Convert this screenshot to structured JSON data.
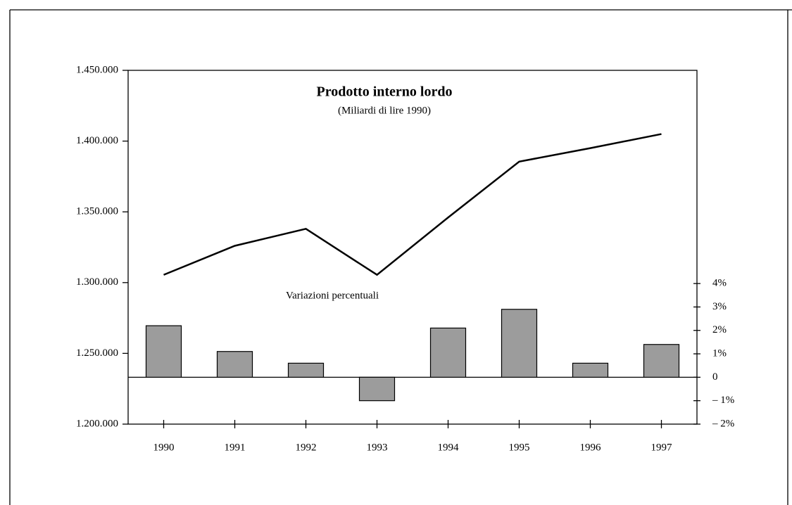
{
  "chart_data": {
    "type": "combo",
    "title": "Prodotto interno lordo",
    "subtitle": "(Miliardi di lire 1990)",
    "annotation": "Variazioni percentuali",
    "categories": [
      "1990",
      "1991",
      "1992",
      "1993",
      "1994",
      "1995",
      "1996",
      "1997"
    ],
    "series": [
      {
        "type": "line",
        "color": "#000000",
        "values": [
          1305500,
          1326000,
          1338000,
          1305500,
          1346000,
          1385500,
          1395000,
          1405000
        ]
      },
      {
        "type": "bar",
        "axis": "y2",
        "color": "#9c9c9c",
        "values": [
          2.2,
          1.1,
          0.6,
          -1.0,
          2.1,
          2.9,
          0.6,
          1.4
        ]
      }
    ],
    "ylim": [
      1200000,
      1450000
    ],
    "yticks": [
      {
        "value": 1200000,
        "label": "1.200.000"
      },
      {
        "value": 1250000,
        "label": "1.250.000"
      },
      {
        "value": 1300000,
        "label": "1.300.000"
      },
      {
        "value": 1350000,
        "label": "1.350.000"
      },
      {
        "value": 1400000,
        "label": "1.400.000"
      },
      {
        "value": 1450000,
        "label": "1.450.000"
      }
    ],
    "y2lim": [
      -2,
      13.1
    ],
    "y2ticks": [
      {
        "value": -2,
        "label": "– 2%"
      },
      {
        "value": -1,
        "label": "– 1%"
      },
      0,
      {
        "value": 1,
        "label": "1%"
      },
      {
        "value": 2,
        "label": "2%"
      },
      {
        "value": 3,
        "label": "3%"
      },
      {
        "value": 4,
        "label": "4%"
      }
    ]
  }
}
